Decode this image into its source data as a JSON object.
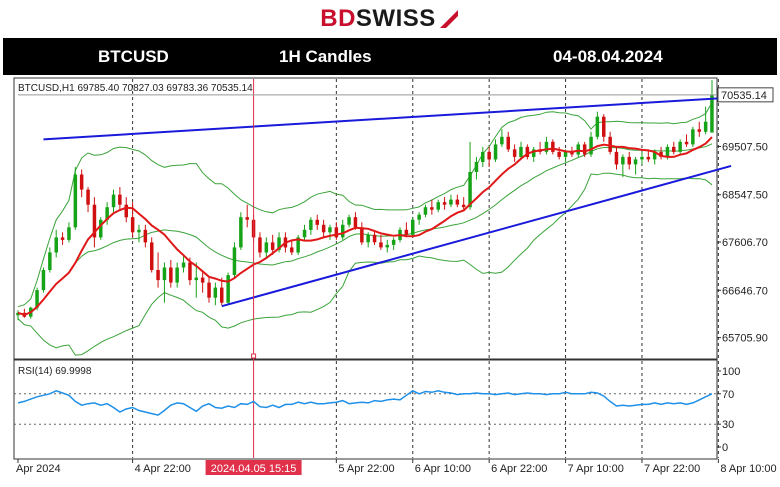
{
  "logo": {
    "bd": "BD",
    "swiss": "SWISS"
  },
  "header": {
    "symbol": "BTCUSD",
    "timeframe": "1H Candles",
    "date_range": "04-08.04.2024"
  },
  "chart_data": {
    "type": "candlestick",
    "info_line": "BTCUSD,H1  69785.40 70827.03 69783.36 70535.14",
    "price_ticks": [
      "70535.14",
      "69507.50",
      "68547.50",
      "67606.70",
      "66646.70",
      "65705.90"
    ],
    "price_tick_values": [
      70535.14,
      69507.5,
      68547.5,
      67606.7,
      66646.7,
      65705.9
    ],
    "current_price": "70535.14",
    "x_labels": [
      "Apr 2024",
      "4 Apr 22:00",
      "2024.04.05 15:15",
      "5 Apr 22:00",
      "6 Apr 10:00",
      "6 Apr 22:00",
      "7 Apr 10:00",
      "7 Apr 22:00",
      "8 Apr 10:00"
    ],
    "highlighted_time": "2024.04.05 15:15",
    "price_range": [
      65300,
      70850
    ],
    "trendlines": {
      "upper": [
        [
          4,
          69650
        ],
        [
          112,
          70480
        ]
      ],
      "lower": [
        [
          32,
          66330
        ],
        [
          112,
          69120
        ]
      ]
    },
    "rsi": {
      "label": "RSI(14) 69.9998",
      "ticks": [
        "100",
        "70",
        "30",
        "0"
      ],
      "tick_values": [
        100,
        70,
        30,
        0
      ],
      "levels": [
        70,
        30
      ],
      "values": [
        58,
        60,
        63,
        66,
        68,
        70,
        74,
        71,
        68,
        60,
        55,
        57,
        58,
        55,
        57,
        52,
        46,
        50,
        52,
        48,
        46,
        44,
        42,
        48,
        55,
        58,
        57,
        52,
        47,
        54,
        57,
        52,
        51,
        54,
        52,
        57,
        56,
        60,
        53,
        52,
        55,
        52,
        56,
        56,
        59,
        57,
        59,
        57,
        57,
        58,
        59,
        61,
        57,
        58,
        59,
        58,
        61,
        60,
        62,
        63,
        62,
        68,
        74,
        70,
        73,
        72,
        74,
        72,
        71,
        69,
        70,
        70,
        71,
        70,
        70,
        69,
        70,
        71,
        69,
        70,
        71,
        70,
        70,
        69,
        70,
        70,
        72,
        70,
        70,
        70,
        72,
        71,
        67,
        60,
        54,
        55,
        54,
        55,
        56,
        56,
        58,
        56,
        58,
        57,
        58,
        56,
        58,
        62,
        66,
        70
      ]
    },
    "candles": [
      {
        "o": 66150,
        "h": 66250,
        "l": 66050,
        "c": 66200
      },
      {
        "o": 66200,
        "h": 66280,
        "l": 66100,
        "c": 66120
      },
      {
        "o": 66120,
        "h": 66320,
        "l": 66080,
        "c": 66300
      },
      {
        "o": 66300,
        "h": 66700,
        "l": 66250,
        "c": 66650
      },
      {
        "o": 66650,
        "h": 67100,
        "l": 66600,
        "c": 67050
      },
      {
        "o": 67050,
        "h": 67500,
        "l": 67000,
        "c": 67400
      },
      {
        "o": 67400,
        "h": 67850,
        "l": 67300,
        "c": 67700
      },
      {
        "o": 67700,
        "h": 67800,
        "l": 67550,
        "c": 67650
      },
      {
        "o": 67650,
        "h": 68000,
        "l": 67600,
        "c": 67900
      },
      {
        "o": 67900,
        "h": 69100,
        "l": 67850,
        "c": 68950
      },
      {
        "o": 68950,
        "h": 69050,
        "l": 68500,
        "c": 68650
      },
      {
        "o": 68650,
        "h": 68700,
        "l": 68200,
        "c": 68350
      },
      {
        "o": 68350,
        "h": 68500,
        "l": 67500,
        "c": 67700
      },
      {
        "o": 67700,
        "h": 68100,
        "l": 67650,
        "c": 68050
      },
      {
        "o": 68050,
        "h": 68400,
        "l": 67950,
        "c": 68300
      },
      {
        "o": 68300,
        "h": 68650,
        "l": 68200,
        "c": 68550
      },
      {
        "o": 68550,
        "h": 68700,
        "l": 68250,
        "c": 68350
      },
      {
        "o": 68350,
        "h": 68500,
        "l": 68000,
        "c": 68100
      },
      {
        "o": 68100,
        "h": 68400,
        "l": 67700,
        "c": 67800
      },
      {
        "o": 67800,
        "h": 67950,
        "l": 67600,
        "c": 67850
      },
      {
        "o": 67850,
        "h": 67950,
        "l": 67500,
        "c": 67600
      },
      {
        "o": 67600,
        "h": 67700,
        "l": 67000,
        "c": 67050
      },
      {
        "o": 67050,
        "h": 67400,
        "l": 66700,
        "c": 66850
      },
      {
        "o": 66850,
        "h": 67200,
        "l": 66400,
        "c": 67100
      },
      {
        "o": 67100,
        "h": 67250,
        "l": 66700,
        "c": 66800
      },
      {
        "o": 66800,
        "h": 67200,
        "l": 66700,
        "c": 67100
      },
      {
        "o": 67100,
        "h": 67350,
        "l": 67000,
        "c": 67200
      },
      {
        "o": 67200,
        "h": 67300,
        "l": 66750,
        "c": 66850
      },
      {
        "o": 66850,
        "h": 67200,
        "l": 66500,
        "c": 66900
      },
      {
        "o": 66900,
        "h": 67000,
        "l": 66600,
        "c": 66800
      },
      {
        "o": 66800,
        "h": 66900,
        "l": 66400,
        "c": 66500
      },
      {
        "o": 66500,
        "h": 66800,
        "l": 66350,
        "c": 66700
      },
      {
        "o": 66700,
        "h": 66900,
        "l": 66350,
        "c": 66400
      },
      {
        "o": 66400,
        "h": 67000,
        "l": 66380,
        "c": 66950
      },
      {
        "o": 66950,
        "h": 67600,
        "l": 66900,
        "c": 67500
      },
      {
        "o": 67500,
        "h": 68200,
        "l": 67450,
        "c": 68100
      },
      {
        "o": 68100,
        "h": 68350,
        "l": 67900,
        "c": 68050
      },
      {
        "o": 68050,
        "h": 68150,
        "l": 67600,
        "c": 67700
      },
      {
        "o": 67700,
        "h": 67800,
        "l": 67300,
        "c": 67400
      },
      {
        "o": 67400,
        "h": 67700,
        "l": 67300,
        "c": 67600
      },
      {
        "o": 67600,
        "h": 67750,
        "l": 67350,
        "c": 67450
      },
      {
        "o": 67450,
        "h": 67800,
        "l": 67400,
        "c": 67700
      },
      {
        "o": 67700,
        "h": 67800,
        "l": 67400,
        "c": 67500
      },
      {
        "o": 67500,
        "h": 67650,
        "l": 67350,
        "c": 67400
      },
      {
        "o": 67400,
        "h": 67750,
        "l": 67350,
        "c": 67700
      },
      {
        "o": 67700,
        "h": 67950,
        "l": 67650,
        "c": 67850
      },
      {
        "o": 67850,
        "h": 68100,
        "l": 67750,
        "c": 68050
      },
      {
        "o": 68050,
        "h": 68150,
        "l": 67850,
        "c": 67950
      },
      {
        "o": 67950,
        "h": 68050,
        "l": 67700,
        "c": 67800
      },
      {
        "o": 67800,
        "h": 67950,
        "l": 67650,
        "c": 67900
      },
      {
        "o": 67900,
        "h": 68000,
        "l": 67650,
        "c": 67700
      },
      {
        "o": 67700,
        "h": 68050,
        "l": 67650,
        "c": 67950
      },
      {
        "o": 67950,
        "h": 68150,
        "l": 67900,
        "c": 68100
      },
      {
        "o": 68100,
        "h": 68200,
        "l": 67850,
        "c": 67900
      },
      {
        "o": 67900,
        "h": 68000,
        "l": 67550,
        "c": 67600
      },
      {
        "o": 67600,
        "h": 67800,
        "l": 67500,
        "c": 67750
      },
      {
        "o": 67750,
        "h": 67850,
        "l": 67550,
        "c": 67600
      },
      {
        "o": 67600,
        "h": 67750,
        "l": 67450,
        "c": 67500
      },
      {
        "o": 67500,
        "h": 67650,
        "l": 67400,
        "c": 67550
      },
      {
        "o": 67550,
        "h": 67700,
        "l": 67450,
        "c": 67650
      },
      {
        "o": 67650,
        "h": 67900,
        "l": 67600,
        "c": 67850
      },
      {
        "o": 67850,
        "h": 68000,
        "l": 67700,
        "c": 67750
      },
      {
        "o": 67750,
        "h": 68100,
        "l": 67700,
        "c": 68050
      },
      {
        "o": 68050,
        "h": 68200,
        "l": 67950,
        "c": 68150
      },
      {
        "o": 68150,
        "h": 68350,
        "l": 68100,
        "c": 68300
      },
      {
        "o": 68300,
        "h": 68450,
        "l": 68150,
        "c": 68250
      },
      {
        "o": 68250,
        "h": 68450,
        "l": 68200,
        "c": 68400
      },
      {
        "o": 68400,
        "h": 68500,
        "l": 68250,
        "c": 68350
      },
      {
        "o": 68350,
        "h": 68550,
        "l": 68300,
        "c": 68450
      },
      {
        "o": 68450,
        "h": 68550,
        "l": 68300,
        "c": 68350
      },
      {
        "o": 68350,
        "h": 68500,
        "l": 68250,
        "c": 68300
      },
      {
        "o": 68300,
        "h": 69600,
        "l": 68250,
        "c": 69000
      },
      {
        "o": 69000,
        "h": 69300,
        "l": 68850,
        "c": 69200
      },
      {
        "o": 69200,
        "h": 69500,
        "l": 69100,
        "c": 69400
      },
      {
        "o": 69400,
        "h": 69500,
        "l": 69100,
        "c": 69250
      },
      {
        "o": 69250,
        "h": 69650,
        "l": 69200,
        "c": 69550
      },
      {
        "o": 69550,
        "h": 69850,
        "l": 69500,
        "c": 69700
      },
      {
        "o": 69700,
        "h": 69800,
        "l": 69400,
        "c": 69450
      },
      {
        "o": 69450,
        "h": 69550,
        "l": 69200,
        "c": 69300
      },
      {
        "o": 69300,
        "h": 69600,
        "l": 69250,
        "c": 69500
      },
      {
        "o": 69500,
        "h": 69550,
        "l": 69250,
        "c": 69300
      },
      {
        "o": 69300,
        "h": 69500,
        "l": 69200,
        "c": 69450
      },
      {
        "o": 69450,
        "h": 69600,
        "l": 69350,
        "c": 69400
      },
      {
        "o": 69400,
        "h": 69700,
        "l": 69350,
        "c": 69600
      },
      {
        "o": 69600,
        "h": 69650,
        "l": 69350,
        "c": 69400
      },
      {
        "o": 69400,
        "h": 69500,
        "l": 69250,
        "c": 69300
      },
      {
        "o": 69300,
        "h": 69450,
        "l": 69200,
        "c": 69400
      },
      {
        "o": 69400,
        "h": 69500,
        "l": 69300,
        "c": 69350
      },
      {
        "o": 69350,
        "h": 69600,
        "l": 69300,
        "c": 69550
      },
      {
        "o": 69550,
        "h": 69600,
        "l": 69300,
        "c": 69350
      },
      {
        "o": 69350,
        "h": 69800,
        "l": 69300,
        "c": 69700
      },
      {
        "o": 69700,
        "h": 70200,
        "l": 69650,
        "c": 70100
      },
      {
        "o": 70100,
        "h": 70150,
        "l": 69600,
        "c": 69700
      },
      {
        "o": 69700,
        "h": 69800,
        "l": 69350,
        "c": 69400
      },
      {
        "o": 69400,
        "h": 69500,
        "l": 69050,
        "c": 69150
      },
      {
        "o": 69150,
        "h": 69350,
        "l": 68900,
        "c": 69300
      },
      {
        "o": 69300,
        "h": 69400,
        "l": 69050,
        "c": 69150
      },
      {
        "o": 69150,
        "h": 69300,
        "l": 68950,
        "c": 69250
      },
      {
        "o": 69250,
        "h": 69400,
        "l": 69150,
        "c": 69300
      },
      {
        "o": 69300,
        "h": 69450,
        "l": 69200,
        "c": 69250
      },
      {
        "o": 69250,
        "h": 69450,
        "l": 69150,
        "c": 69400
      },
      {
        "o": 69400,
        "h": 69500,
        "l": 69250,
        "c": 69300
      },
      {
        "o": 69300,
        "h": 69550,
        "l": 69250,
        "c": 69500
      },
      {
        "o": 69500,
        "h": 69600,
        "l": 69350,
        "c": 69400
      },
      {
        "o": 69400,
        "h": 69650,
        "l": 69350,
        "c": 69600
      },
      {
        "o": 69600,
        "h": 69750,
        "l": 69500,
        "c": 69550
      },
      {
        "o": 69550,
        "h": 69900,
        "l": 69500,
        "c": 69850
      },
      {
        "o": 69850,
        "h": 70000,
        "l": 69700,
        "c": 69800
      },
      {
        "o": 69800,
        "h": 70300,
        "l": 69750,
        "c": 70000
      },
      {
        "o": 69785,
        "h": 70827,
        "l": 69783,
        "c": 70535
      }
    ]
  }
}
